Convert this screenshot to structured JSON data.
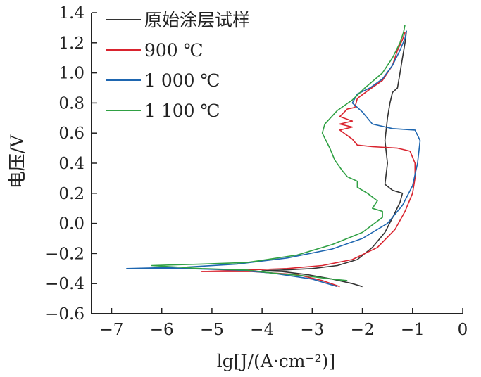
{
  "chart_data": {
    "type": "line",
    "xlabel": "lg[J/(A·cm⁻²)]",
    "ylabel": "电压/V",
    "xlim": [
      -7.4,
      0
    ],
    "ylim": [
      -0.6,
      1.4
    ],
    "x_ticks": [
      "−7",
      "−6",
      "−5",
      "−4",
      "−3",
      "−2",
      "−1",
      "0"
    ],
    "y_ticks": [
      "−0.6",
      "−0.4",
      "−0.2",
      "0.0",
      "0.2",
      "0.4",
      "0.6",
      "0.8",
      "1.0",
      "1.2",
      "1.4"
    ],
    "legend_position": "top-left",
    "grid": false,
    "series": [
      {
        "name": "原始涂层试样",
        "color": "#333333",
        "points": [
          [
            -2.0,
            -0.42
          ],
          [
            -2.2,
            -0.4
          ],
          [
            -2.6,
            -0.37
          ],
          [
            -3.1,
            -0.34
          ],
          [
            -3.6,
            -0.32
          ],
          [
            -4.0,
            -0.315
          ],
          [
            -3.6,
            -0.31
          ],
          [
            -3.0,
            -0.3
          ],
          [
            -2.5,
            -0.28
          ],
          [
            -2.1,
            -0.24
          ],
          [
            -1.8,
            -0.16
          ],
          [
            -1.55,
            -0.06
          ],
          [
            -1.38,
            0.05
          ],
          [
            -1.25,
            0.14
          ],
          [
            -1.2,
            0.2
          ],
          [
            -1.4,
            0.22
          ],
          [
            -1.55,
            0.26
          ],
          [
            -1.5,
            0.4
          ],
          [
            -1.55,
            0.55
          ],
          [
            -1.5,
            0.7
          ],
          [
            -1.45,
            0.8
          ],
          [
            -1.4,
            0.87
          ],
          [
            -1.3,
            0.9
          ],
          [
            -1.25,
            1.0
          ],
          [
            -1.2,
            1.1
          ],
          [
            -1.15,
            1.2
          ],
          [
            -1.12,
            1.28
          ]
        ]
      },
      {
        "name": "900 ℃",
        "color": "#d9232e",
        "points": [
          [
            -2.45,
            -0.42
          ],
          [
            -2.8,
            -0.38
          ],
          [
            -3.3,
            -0.34
          ],
          [
            -4.2,
            -0.32
          ],
          [
            -5.2,
            -0.32
          ],
          [
            -4.3,
            -0.31
          ],
          [
            -3.5,
            -0.3
          ],
          [
            -2.8,
            -0.28
          ],
          [
            -2.2,
            -0.24
          ],
          [
            -1.7,
            -0.16
          ],
          [
            -1.35,
            -0.04
          ],
          [
            -1.15,
            0.08
          ],
          [
            -1.0,
            0.2
          ],
          [
            -0.95,
            0.3
          ],
          [
            -0.95,
            0.4
          ],
          [
            -1.05,
            0.48
          ],
          [
            -1.3,
            0.5
          ],
          [
            -1.8,
            0.51
          ],
          [
            -2.1,
            0.52
          ],
          [
            -2.2,
            0.56
          ],
          [
            -2.45,
            0.62
          ],
          [
            -2.2,
            0.64
          ],
          [
            -2.45,
            0.66
          ],
          [
            -2.2,
            0.68
          ],
          [
            -2.45,
            0.71
          ],
          [
            -2.3,
            0.76
          ],
          [
            -2.15,
            0.77
          ],
          [
            -2.1,
            0.83
          ],
          [
            -1.9,
            0.88
          ],
          [
            -1.6,
            0.95
          ],
          [
            -1.4,
            1.05
          ],
          [
            -1.3,
            1.15
          ],
          [
            -1.2,
            1.22
          ],
          [
            -1.15,
            1.27
          ]
        ]
      },
      {
        "name": "1 000 ℃",
        "color": "#1e66b0",
        "points": [
          [
            -2.5,
            -0.42
          ],
          [
            -3.0,
            -0.37
          ],
          [
            -3.8,
            -0.33
          ],
          [
            -4.5,
            -0.31
          ],
          [
            -5.5,
            -0.3
          ],
          [
            -6.7,
            -0.3
          ],
          [
            -5.5,
            -0.29
          ],
          [
            -4.5,
            -0.27
          ],
          [
            -3.5,
            -0.23
          ],
          [
            -2.6,
            -0.17
          ],
          [
            -2.0,
            -0.1
          ],
          [
            -1.5,
            0.0
          ],
          [
            -1.2,
            0.12
          ],
          [
            -1.0,
            0.25
          ],
          [
            -0.9,
            0.4
          ],
          [
            -0.85,
            0.55
          ],
          [
            -0.95,
            0.62
          ],
          [
            -1.4,
            0.63
          ],
          [
            -1.8,
            0.66
          ],
          [
            -2.0,
            0.74
          ],
          [
            -2.2,
            0.8
          ],
          [
            -2.1,
            0.86
          ],
          [
            -1.85,
            0.9
          ],
          [
            -1.6,
            0.96
          ],
          [
            -1.4,
            1.05
          ],
          [
            -1.25,
            1.15
          ],
          [
            -1.15,
            1.23
          ],
          [
            -1.12,
            1.28
          ]
        ]
      },
      {
        "name": "1 100 ℃",
        "color": "#2fa043",
        "points": [
          [
            -2.3,
            -0.38
          ],
          [
            -2.6,
            -0.37
          ],
          [
            -3.1,
            -0.35
          ],
          [
            -3.8,
            -0.33
          ],
          [
            -4.3,
            -0.31
          ],
          [
            -5.2,
            -0.3
          ],
          [
            -6.2,
            -0.28
          ],
          [
            -5.2,
            -0.27
          ],
          [
            -4.3,
            -0.26
          ],
          [
            -3.3,
            -0.21
          ],
          [
            -2.6,
            -0.14
          ],
          [
            -2.0,
            -0.06
          ],
          [
            -1.6,
            0.04
          ],
          [
            -1.6,
            0.08
          ],
          [
            -1.8,
            0.1
          ],
          [
            -1.7,
            0.15
          ],
          [
            -1.9,
            0.2
          ],
          [
            -2.1,
            0.24
          ],
          [
            -2.1,
            0.28
          ],
          [
            -2.3,
            0.31
          ],
          [
            -2.4,
            0.35
          ],
          [
            -2.55,
            0.42
          ],
          [
            -2.65,
            0.5
          ],
          [
            -2.8,
            0.6
          ],
          [
            -2.75,
            0.66
          ],
          [
            -2.5,
            0.75
          ],
          [
            -2.2,
            0.82
          ],
          [
            -1.95,
            0.9
          ],
          [
            -1.6,
            1.0
          ],
          [
            -1.4,
            1.1
          ],
          [
            -1.25,
            1.2
          ],
          [
            -1.18,
            1.27
          ],
          [
            -1.15,
            1.32
          ]
        ]
      }
    ]
  }
}
